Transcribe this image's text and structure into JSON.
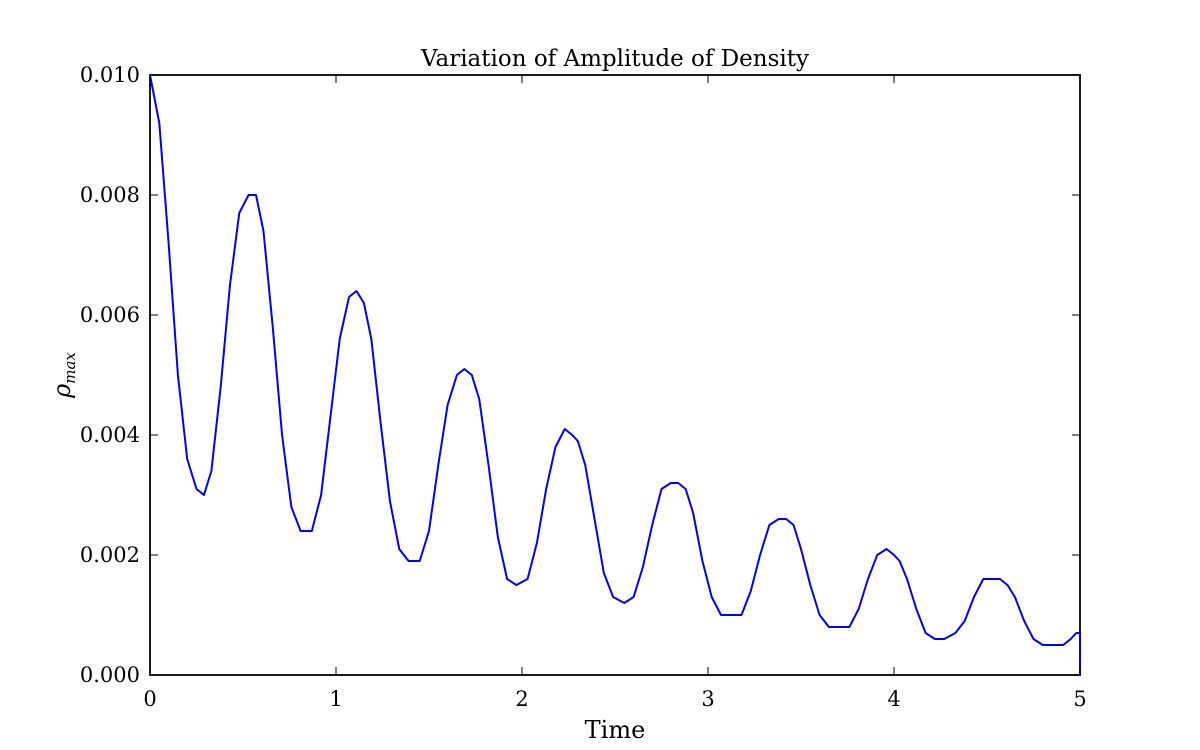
{
  "chart_data": {
    "type": "line",
    "title": "Variation of Amplitude of Density",
    "xlabel": "Time",
    "ylabel": {
      "base": "ρ",
      "sub": "max"
    },
    "xlim": [
      0,
      5
    ],
    "ylim": [
      0,
      0.01
    ],
    "x_ticks": [
      "0",
      "1",
      "2",
      "3",
      "4",
      "5"
    ],
    "y_ticks": [
      "0.000",
      "0.002",
      "0.004",
      "0.006",
      "0.008",
      "0.010"
    ],
    "grid": false,
    "legend": "none",
    "series": [
      {
        "color": "#0000ff",
        "x": [
          0.0,
          0.05,
          0.1,
          0.15,
          0.2,
          0.25,
          0.29,
          0.33,
          0.38,
          0.43,
          0.48,
          0.53,
          0.57,
          0.61,
          0.66,
          0.71,
          0.76,
          0.81,
          0.87,
          0.92,
          0.97,
          1.02,
          1.07,
          1.11,
          1.15,
          1.19,
          1.24,
          1.29,
          1.34,
          1.39,
          1.45,
          1.5,
          1.55,
          1.6,
          1.65,
          1.69,
          1.73,
          1.77,
          1.82,
          1.87,
          1.92,
          1.97,
          2.03,
          2.08,
          2.13,
          2.18,
          2.23,
          2.27,
          2.3,
          2.34,
          2.39,
          2.44,
          2.49,
          2.55,
          2.6,
          2.65,
          2.7,
          2.75,
          2.8,
          2.84,
          2.88,
          2.92,
          2.97,
          3.02,
          3.07,
          3.12,
          3.18,
          3.23,
          3.28,
          3.33,
          3.38,
          3.42,
          3.46,
          3.5,
          3.55,
          3.6,
          3.65,
          3.7,
          3.76,
          3.81,
          3.86,
          3.91,
          3.96,
          4.0,
          4.03,
          4.07,
          4.12,
          4.17,
          4.22,
          4.27,
          4.33,
          4.38,
          4.43,
          4.48,
          4.53,
          4.57,
          4.61,
          4.65,
          4.7,
          4.75,
          4.8,
          4.85,
          4.91,
          4.95,
          4.98,
          5.0,
          5.0
        ],
        "y": [
          0.01,
          0.0092,
          0.0072,
          0.005,
          0.0036,
          0.0031,
          0.003,
          0.0034,
          0.0048,
          0.0065,
          0.0077,
          0.008,
          0.008,
          0.0074,
          0.0058,
          0.004,
          0.0028,
          0.0024,
          0.0024,
          0.003,
          0.0043,
          0.0056,
          0.0063,
          0.0064,
          0.0062,
          0.0056,
          0.0042,
          0.0029,
          0.0021,
          0.0019,
          0.0019,
          0.0024,
          0.0035,
          0.0045,
          0.005,
          0.0051,
          0.005,
          0.0046,
          0.0035,
          0.0023,
          0.0016,
          0.0015,
          0.0016,
          0.0022,
          0.0031,
          0.0038,
          0.0041,
          0.004,
          0.0039,
          0.0035,
          0.0026,
          0.0017,
          0.0013,
          0.0012,
          0.0013,
          0.0018,
          0.0025,
          0.0031,
          0.0032,
          0.0032,
          0.0031,
          0.0027,
          0.0019,
          0.0013,
          0.001,
          0.001,
          0.001,
          0.0014,
          0.002,
          0.0025,
          0.0026,
          0.0026,
          0.0025,
          0.0021,
          0.0015,
          0.001,
          0.0008,
          0.0008,
          0.0008,
          0.0011,
          0.0016,
          0.002,
          0.0021,
          0.002,
          0.0019,
          0.0016,
          0.0011,
          0.0007,
          0.0006,
          0.0006,
          0.0007,
          0.0009,
          0.0013,
          0.0016,
          0.0016,
          0.0016,
          0.0015,
          0.0013,
          0.0009,
          0.0006,
          0.0005,
          0.0005,
          0.0005,
          0.0006,
          0.0007,
          0.0007,
          0.0
        ]
      }
    ]
  }
}
